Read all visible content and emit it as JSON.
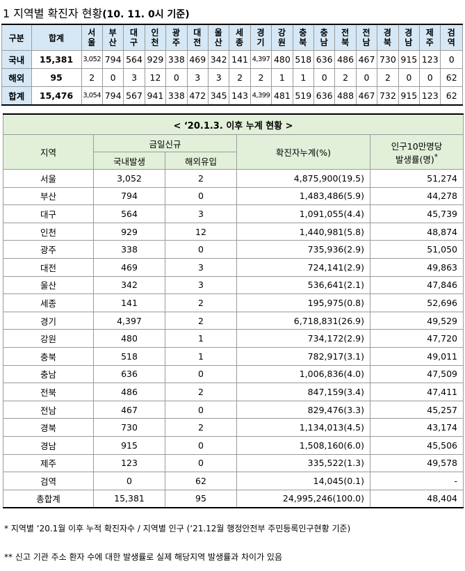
{
  "title": {
    "main": "1 지역별 확진자 현황",
    "sub": "(10. 11. 0시 기준)"
  },
  "summary": {
    "header_label": "구분",
    "header_total": "합계",
    "regions": [
      "서울",
      "부산",
      "대구",
      "인천",
      "광주",
      "대전",
      "울산",
      "세종",
      "경기",
      "강원",
      "충북",
      "충남",
      "전북",
      "전남",
      "경북",
      "경남",
      "제주",
      "검역"
    ],
    "rows": [
      {
        "label": "국내",
        "total": "15,381",
        "values": [
          "3,052",
          "794",
          "564",
          "929",
          "338",
          "469",
          "342",
          "141",
          "4,397",
          "480",
          "518",
          "636",
          "486",
          "467",
          "730",
          "915",
          "123",
          "0"
        ]
      },
      {
        "label": "해외",
        "total": "95",
        "values": [
          "2",
          "0",
          "3",
          "12",
          "0",
          "3",
          "3",
          "2",
          "2",
          "1",
          "1",
          "0",
          "2",
          "0",
          "2",
          "0",
          "0",
          "62"
        ]
      },
      {
        "label": "합계",
        "total": "15,476",
        "values": [
          "3,054",
          "794",
          "567",
          "941",
          "338",
          "472",
          "345",
          "143",
          "4,399",
          "481",
          "519",
          "636",
          "488",
          "467",
          "732",
          "915",
          "123",
          "62"
        ]
      }
    ]
  },
  "cumulative": {
    "caption": "< ‘20.1.3. 이후 누계 현황 >",
    "headers": {
      "region": "지역",
      "today_new": "금일신규",
      "domestic": "국내발생",
      "overseas": "해외유입",
      "cumulative": "확진자누계(%)",
      "rate_line1": "인구10만명당",
      "rate_line2": "발생률(명)",
      "rate_mark": "*"
    },
    "rows": [
      {
        "region": "서울",
        "domestic": "3,052",
        "overseas": "2",
        "cumulative": "4,875,900(19.5)",
        "rate": "51,274"
      },
      {
        "region": "부산",
        "domestic": "794",
        "overseas": "0",
        "cumulative": "1,483,486(5.9)",
        "rate": "44,278"
      },
      {
        "region": "대구",
        "domestic": "564",
        "overseas": "3",
        "cumulative": "1,091,055(4.4)",
        "rate": "45,739"
      },
      {
        "region": "인천",
        "domestic": "929",
        "overseas": "12",
        "cumulative": "1,440,981(5.8)",
        "rate": "48,874"
      },
      {
        "region": "광주",
        "domestic": "338",
        "overseas": "0",
        "cumulative": "735,936(2.9)",
        "rate": "51,050"
      },
      {
        "region": "대전",
        "domestic": "469",
        "overseas": "3",
        "cumulative": "724,141(2.9)",
        "rate": "49,863"
      },
      {
        "region": "울산",
        "domestic": "342",
        "overseas": "3",
        "cumulative": "536,641(2.1)",
        "rate": "47,846"
      },
      {
        "region": "세종",
        "domestic": "141",
        "overseas": "2",
        "cumulative": "195,975(0.8)",
        "rate": "52,696"
      },
      {
        "region": "경기",
        "domestic": "4,397",
        "overseas": "2",
        "cumulative": "6,718,831(26.9)",
        "rate": "49,529"
      },
      {
        "region": "강원",
        "domestic": "480",
        "overseas": "1",
        "cumulative": "734,172(2.9)",
        "rate": "47,720"
      },
      {
        "region": "충북",
        "domestic": "518",
        "overseas": "1",
        "cumulative": "782,917(3.1)",
        "rate": "49,011"
      },
      {
        "region": "충남",
        "domestic": "636",
        "overseas": "0",
        "cumulative": "1,006,836(4.0)",
        "rate": "47,509"
      },
      {
        "region": "전북",
        "domestic": "486",
        "overseas": "2",
        "cumulative": "847,159(3.4)",
        "rate": "47,411"
      },
      {
        "region": "전남",
        "domestic": "467",
        "overseas": "0",
        "cumulative": "829,476(3.3)",
        "rate": "45,257"
      },
      {
        "region": "경북",
        "domestic": "730",
        "overseas": "2",
        "cumulative": "1,134,013(4.5)",
        "rate": "43,174"
      },
      {
        "region": "경남",
        "domestic": "915",
        "overseas": "0",
        "cumulative": "1,508,160(6.0)",
        "rate": "45,506"
      },
      {
        "region": "제주",
        "domestic": "123",
        "overseas": "0",
        "cumulative": "335,522(1.3)",
        "rate": "49,578"
      },
      {
        "region": "검역",
        "domestic": "0",
        "overseas": "62",
        "cumulative": "14,045(0.1)",
        "rate": "-"
      },
      {
        "region": "총합계",
        "domestic": "15,381",
        "overseas": "95",
        "cumulative": "24,995,246(100.0)",
        "rate": "48,404"
      }
    ]
  },
  "notes": {
    "note1": "* 지역별 ‘20.1월 이후 누적 확진자수 / 지역별 인구 (‘21.12월 행정안전부 주민등록인구현황 기준)",
    "note2": "** 신고 기관 주소 환자 수에 대한 발생률로 실제 해당지역 발생률과 차이가 있음"
  },
  "colors": {
    "summary_header_bg": "#d6e8f5",
    "cumulative_header_bg": "#e2f0d9"
  }
}
